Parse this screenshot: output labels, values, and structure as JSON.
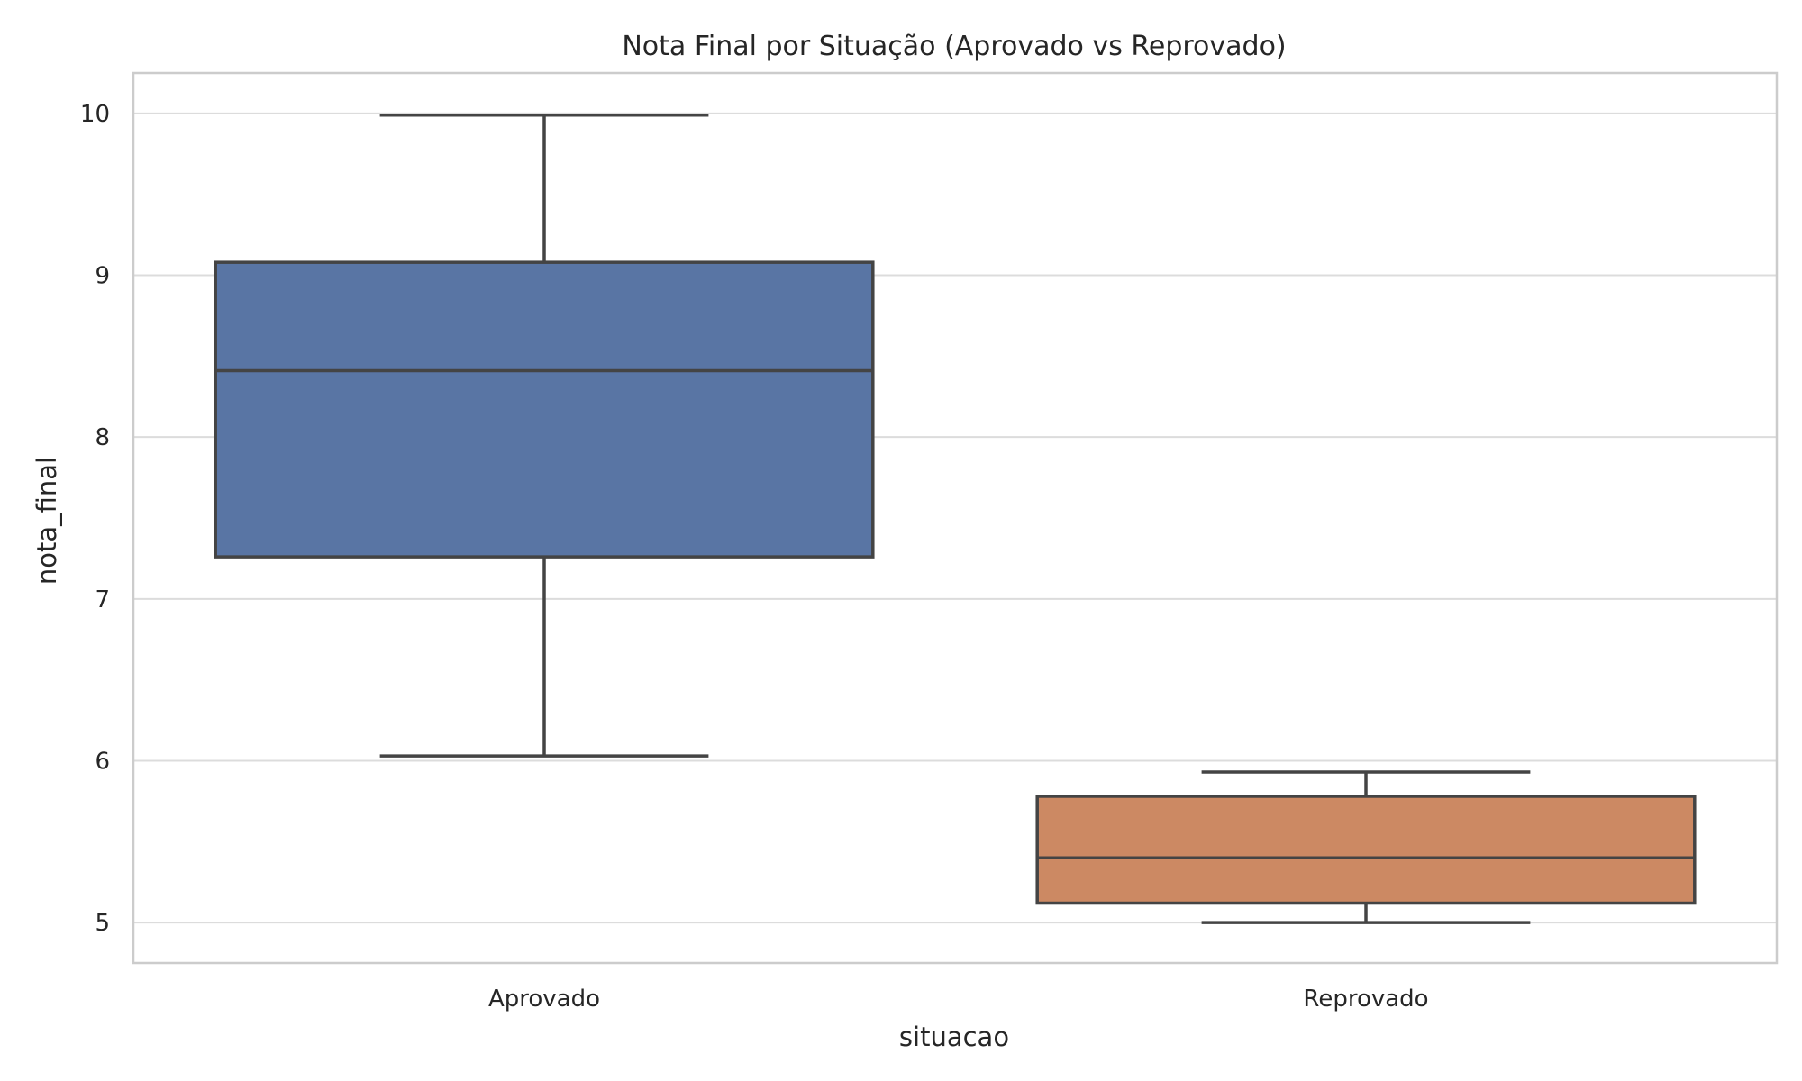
{
  "chart_data": {
    "type": "box",
    "title": "Nota Final por Situação (Aprovado vs Reprovado)",
    "xlabel": "situacao",
    "ylabel": "nota_final",
    "ylim": [
      4.75,
      10.25
    ],
    "yticks": [
      5,
      6,
      7,
      8,
      9,
      10
    ],
    "ytick_labels": [
      "5",
      "6",
      "7",
      "8",
      "9",
      "10"
    ],
    "grid": "horizontal",
    "categories": [
      "Aprovado",
      "Reprovado"
    ],
    "boxes": [
      {
        "category": "Aprovado",
        "whisker_low": 6.03,
        "q1": 7.26,
        "median": 8.41,
        "q3": 9.08,
        "whisker_high": 9.99,
        "color": "#5975a4"
      },
      {
        "category": "Reprovado",
        "whisker_low": 5.0,
        "q1": 5.12,
        "median": 5.4,
        "q3": 5.78,
        "whisker_high": 5.93,
        "color": "#cc8963"
      }
    ]
  }
}
